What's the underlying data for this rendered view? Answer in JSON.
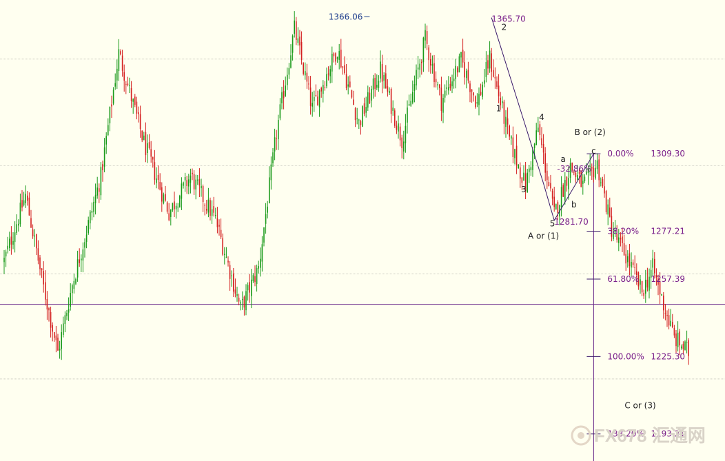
{
  "chart_data": {
    "type": "candlestick",
    "ylim": [
      1182,
      1373
    ],
    "colors": {
      "background": "#fffff0",
      "up": "#1a9a1a",
      "down": "#d42020",
      "grid": "#b0b0a8",
      "support_line": "#6a2a8a",
      "fib_text": "#7a1f8a",
      "wave_line": "#3a1a6a"
    },
    "grid": true,
    "gridlines_y": [
      1348.5,
      1304.3,
      1259.5,
      1246.9,
      1216.0
    ],
    "support_line": 1246.9,
    "swing_points": [
      {
        "i": 0,
        "v": 1265
      },
      {
        "i": 12,
        "v": 1292
      },
      {
        "i": 22,
        "v": 1254
      },
      {
        "i": 30,
        "v": 1227
      },
      {
        "i": 38,
        "v": 1255
      },
      {
        "i": 54,
        "v": 1300
      },
      {
        "i": 64,
        "v": 1351
      },
      {
        "i": 78,
        "v": 1314
      },
      {
        "i": 92,
        "v": 1285
      },
      {
        "i": 104,
        "v": 1300
      },
      {
        "i": 118,
        "v": 1282
      },
      {
        "i": 132,
        "v": 1245
      },
      {
        "i": 142,
        "v": 1262
      },
      {
        "i": 152,
        "v": 1318
      },
      {
        "i": 162,
        "v": 1361
      },
      {
        "i": 172,
        "v": 1328
      },
      {
        "i": 186,
        "v": 1353
      },
      {
        "i": 198,
        "v": 1322
      },
      {
        "i": 210,
        "v": 1344
      },
      {
        "i": 222,
        "v": 1315
      },
      {
        "i": 235,
        "v": 1357
      },
      {
        "i": 244,
        "v": 1331
      },
      {
        "i": 255,
        "v": 1348
      },
      {
        "i": 264,
        "v": 1330
      },
      {
        "i": 271,
        "v": 1349
      },
      {
        "i": 282,
        "v": 1315
      },
      {
        "i": 291,
        "v": 1296
      },
      {
        "i": 298,
        "v": 1320
      },
      {
        "i": 307,
        "v": 1284
      },
      {
        "i": 316,
        "v": 1304
      },
      {
        "i": 323,
        "v": 1296
      },
      {
        "i": 331,
        "v": 1305
      },
      {
        "i": 339,
        "v": 1278
      },
      {
        "i": 349,
        "v": 1264
      },
      {
        "i": 356,
        "v": 1252
      },
      {
        "i": 362,
        "v": 1262
      },
      {
        "i": 368,
        "v": 1247
      },
      {
        "i": 374,
        "v": 1233
      },
      {
        "i": 382,
        "v": 1227
      }
    ],
    "n_candles": 383,
    "annotations": [
      {
        "text": "1366.06",
        "i": 204,
        "v": 1366.06,
        "kind": "high"
      },
      {
        "text": "1365.70",
        "i": 272,
        "v": 1365.7,
        "kind": "peak"
      },
      {
        "text": "1281.70",
        "i": 307,
        "v": 1281.7,
        "kind": "peak"
      }
    ],
    "wave_labels": [
      {
        "text": "2",
        "i": 279,
        "v": 1361.7
      },
      {
        "text": "1",
        "i": 276,
        "v": 1328.0
      },
      {
        "text": "4",
        "i": 300,
        "v": 1324.5
      },
      {
        "text": "3",
        "i": 290,
        "v": 1294.5
      },
      {
        "text": "5",
        "i": 306,
        "v": 1280.4
      },
      {
        "text": "c",
        "i": 329,
        "v": 1310.5
      },
      {
        "text": "b",
        "i": 318,
        "v": 1288.2
      },
      {
        "text": "a",
        "i": 312,
        "v": 1307.0
      },
      {
        "text": "B or (2)",
        "i": 327,
        "v": 1318.2
      },
      {
        "text": "A or (1)",
        "i": 301,
        "v": 1275.2
      },
      {
        "text": "C or (3)",
        "i": 355,
        "v": 1205.0
      }
    ],
    "fib_levels": [
      {
        "pct": "0.00%",
        "price": "1309.30",
        "v": 1309.3,
        "pct_text": "0.00%"
      },
      {
        "pct": "38.20%",
        "price": "1277.21",
        "v": 1277.21,
        "pct_text": "38.20%"
      },
      {
        "pct": "61.80%",
        "price": "1257.39",
        "v": 1257.39,
        "pct_text": "61.80%"
      },
      {
        "pct": "100.00%",
        "price": "1225.30",
        "v": 1225.3,
        "pct_text": "100.00%"
      },
      {
        "pct": "138.20%",
        "price": "1193.21",
        "v": 1193.21,
        "pct_text": "138.20%"
      }
    ],
    "retracement": {
      "text": "-32.86%",
      "i": 304,
      "v": 1303.0
    },
    "wave_path": [
      {
        "i": 272,
        "v": 1365.7
      },
      {
        "i": 301,
        "v": 1297
      },
      {
        "i": 307,
        "v": 1281.7
      },
      {
        "i": 329,
        "v": 1309.3
      }
    ]
  },
  "watermark": {
    "text": "FX678 汇通网"
  }
}
